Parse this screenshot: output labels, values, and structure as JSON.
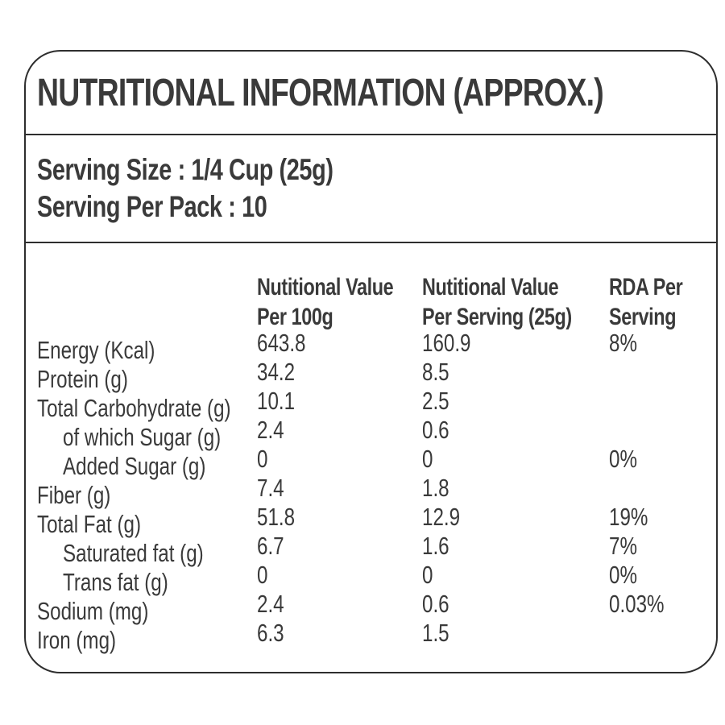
{
  "colors": {
    "text": "#3a3a3a",
    "border": "#2e2e2e",
    "background": "#ffffff"
  },
  "label": {
    "title": "NUTRITIONAL INFORMATION (APPROX.)",
    "serving_size": "Serving Size : 1/4 Cup (25g)",
    "serving_per_pack": "Serving Per Pack : 10"
  },
  "table": {
    "columns": [
      {
        "line1": "Nutitional Value",
        "line2": "Per 100g"
      },
      {
        "line1": "Nutitional Value",
        "line2": "Per Serving (25g)"
      },
      {
        "line1": "RDA Per",
        "line2": "Serving"
      }
    ],
    "rows": [
      {
        "label": "Energy (Kcal)",
        "indent": false,
        "per_100g": "643.8",
        "per_serving": "160.9",
        "rda": "8%"
      },
      {
        "label": "Protein (g)",
        "indent": false,
        "per_100g": "34.2",
        "per_serving": "8.5",
        "rda": ""
      },
      {
        "label": "Total Carbohydrate (g)",
        "indent": false,
        "per_100g": "10.1",
        "per_serving": "2.5",
        "rda": ""
      },
      {
        "label": "of which Sugar (g)",
        "indent": true,
        "per_100g": "2.4",
        "per_serving": "0.6",
        "rda": ""
      },
      {
        "label": "Added Sugar (g)",
        "indent": true,
        "per_100g": "0",
        "per_serving": "0",
        "rda": "0%"
      },
      {
        "label": "Fiber (g)",
        "indent": false,
        "per_100g": "7.4",
        "per_serving": "1.8",
        "rda": ""
      },
      {
        "label": "Total Fat (g)",
        "indent": false,
        "per_100g": "51.8",
        "per_serving": "12.9",
        "rda": "19%"
      },
      {
        "label": "Saturated fat (g)",
        "indent": true,
        "per_100g": "6.7",
        "per_serving": "1.6",
        "rda": "7%"
      },
      {
        "label": "Trans fat (g)",
        "indent": true,
        "per_100g": "0",
        "per_serving": "0",
        "rda": "0%"
      },
      {
        "label": "Sodium (mg)",
        "indent": false,
        "per_100g": "2.4",
        "per_serving": "0.6",
        "rda": "0.03%"
      },
      {
        "label": "Iron (mg)",
        "indent": false,
        "per_100g": "6.3",
        "per_serving": "1.5",
        "rda": ""
      }
    ]
  }
}
